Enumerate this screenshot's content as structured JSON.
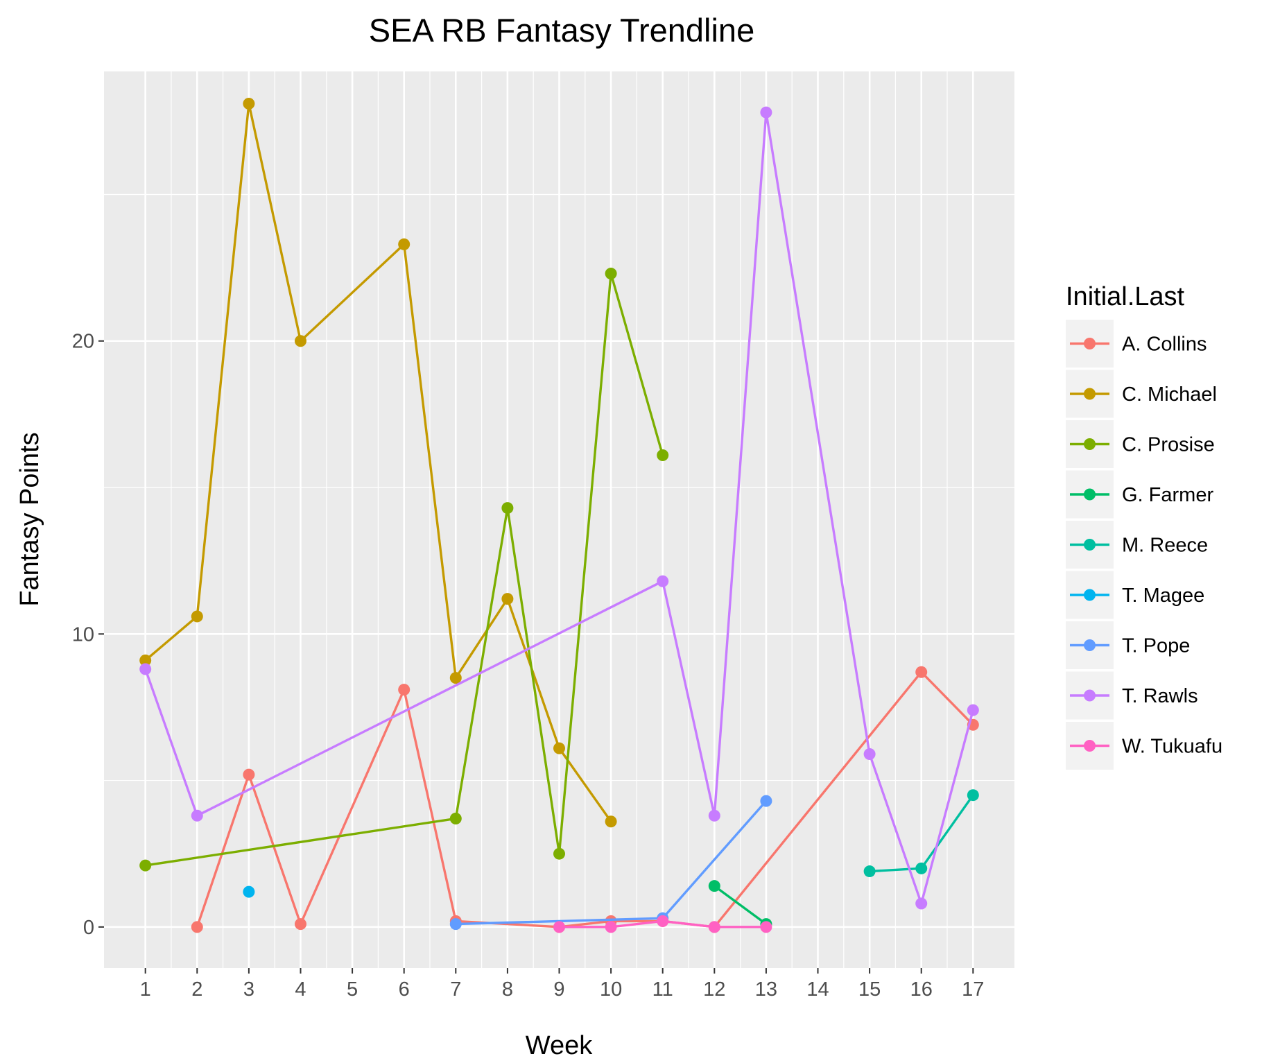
{
  "chart_data": {
    "type": "line",
    "title": "SEA RB Fantasy Trendline",
    "xlabel": "Week",
    "ylabel": "Fantasy Points",
    "x_ticks": [
      1,
      2,
      3,
      4,
      5,
      6,
      7,
      8,
      9,
      10,
      11,
      12,
      13,
      14,
      15,
      16,
      17
    ],
    "y_ticks": [
      0,
      10,
      20
    ],
    "xlim": [
      0.2,
      17.8
    ],
    "ylim": [
      -1.4,
      29.2
    ],
    "grid": true,
    "legend_title": "Initial.Last",
    "legend_position": "right",
    "series": [
      {
        "name": "A. Collins",
        "color": "#F8766D",
        "points": [
          [
            2,
            0
          ],
          [
            3,
            5.2
          ],
          [
            4,
            0.1
          ],
          [
            6,
            8.1
          ],
          [
            7,
            0.2
          ],
          [
            9,
            0
          ],
          [
            10,
            0.2
          ],
          [
            11,
            0.2
          ],
          [
            12,
            0
          ],
          [
            16,
            8.7
          ],
          [
            17,
            6.9
          ]
        ]
      },
      {
        "name": "C. Michael",
        "color": "#C49A00",
        "points": [
          [
            1,
            9.1
          ],
          [
            2,
            10.6
          ],
          [
            3,
            28.1
          ],
          [
            4,
            20.0
          ],
          [
            6,
            23.3
          ],
          [
            7,
            8.5
          ],
          [
            8,
            11.2
          ],
          [
            9,
            6.1
          ],
          [
            10,
            3.6
          ]
        ]
      },
      {
        "name": "C. Prosise",
        "color": "#7CAE00",
        "points": [
          [
            1,
            2.1
          ],
          [
            7,
            3.7
          ],
          [
            8,
            14.3
          ],
          [
            9,
            2.5
          ],
          [
            10,
            22.3
          ],
          [
            11,
            16.1
          ]
        ]
      },
      {
        "name": "G. Farmer",
        "color": "#00BE67",
        "points": [
          [
            12,
            1.4
          ],
          [
            13,
            0.1
          ]
        ]
      },
      {
        "name": "M. Reece",
        "color": "#00BFA0",
        "points": [
          [
            15,
            1.9
          ],
          [
            16,
            2.0
          ],
          [
            17,
            4.5
          ]
        ]
      },
      {
        "name": "T. Magee",
        "color": "#00B4EF",
        "points": [
          [
            3,
            1.2
          ]
        ]
      },
      {
        "name": "T. Pope",
        "color": "#619CFF",
        "points": [
          [
            7,
            0.1
          ],
          [
            11,
            0.3
          ],
          [
            13,
            4.3
          ]
        ]
      },
      {
        "name": "T. Rawls",
        "color": "#C77CFF",
        "points": [
          [
            1,
            8.8
          ],
          [
            2,
            3.8
          ],
          [
            11,
            11.8
          ],
          [
            12,
            3.8
          ],
          [
            13,
            27.8
          ],
          [
            15,
            5.9
          ],
          [
            16,
            0.8
          ],
          [
            17,
            7.4
          ]
        ]
      },
      {
        "name": "W. Tukuafu",
        "color": "#FF61C3",
        "points": [
          [
            9,
            0
          ],
          [
            10,
            0
          ],
          [
            11,
            0.2
          ],
          [
            12,
            0
          ],
          [
            13,
            0
          ]
        ]
      }
    ]
  }
}
